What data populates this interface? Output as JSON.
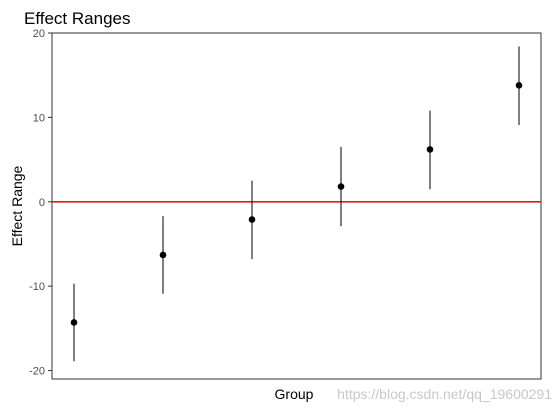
{
  "chart_data": {
    "type": "scatter",
    "title": "Effect Ranges",
    "xlabel": "Group",
    "ylabel": "Effect Range",
    "ylim": [
      -21,
      20
    ],
    "yticks": [
      20,
      10,
      0,
      -10,
      -20
    ],
    "grid": false,
    "reference_line": {
      "y": 0,
      "color": "#e31a1c"
    },
    "point_color": "#000000",
    "series": [
      {
        "points": [
          {
            "y": -14.3,
            "low": -18.9,
            "high": -9.7
          },
          {
            "y": -6.3,
            "low": -10.9,
            "high": -1.7
          },
          {
            "y": -2.1,
            "low": -6.8,
            "high": 2.5
          },
          {
            "y": 1.8,
            "low": -2.9,
            "high": 6.5
          },
          {
            "y": 6.2,
            "low": 1.5,
            "high": 10.8
          },
          {
            "y": 13.8,
            "low": 9.1,
            "high": 18.4
          }
        ]
      }
    ]
  },
  "watermark": "https://blog.csdn.net/qq_19600291"
}
